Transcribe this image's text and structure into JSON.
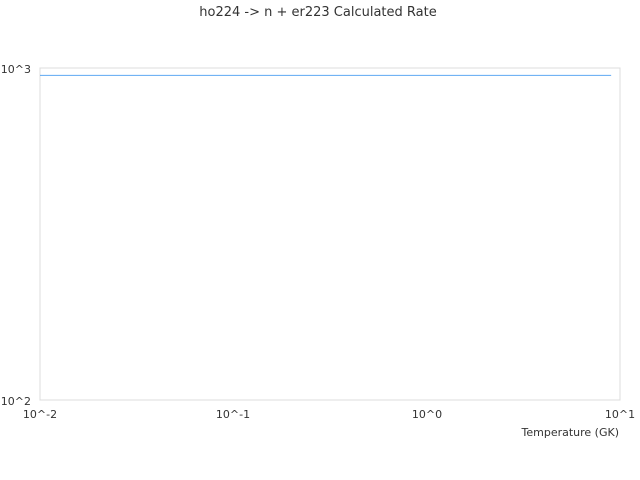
{
  "chart_data": {
    "type": "line",
    "title": "ho224 -> n + er223 Calculated Rate",
    "xlabel": "Temperature (GK)",
    "ylabel": "",
    "xscale": "log",
    "yscale": "log",
    "xlim": [
      0.01,
      10
    ],
    "ylim": [
      100,
      1000
    ],
    "xticks": [
      "10^-2",
      "10^-1",
      "10^0",
      "10^1"
    ],
    "yticks": [
      "10^2",
      "10^3"
    ],
    "grid": false,
    "series": [
      {
        "color": "#5ea8f2",
        "x": [
          0.01,
          9.0
        ],
        "y": [
          950,
          950
        ]
      }
    ]
  }
}
